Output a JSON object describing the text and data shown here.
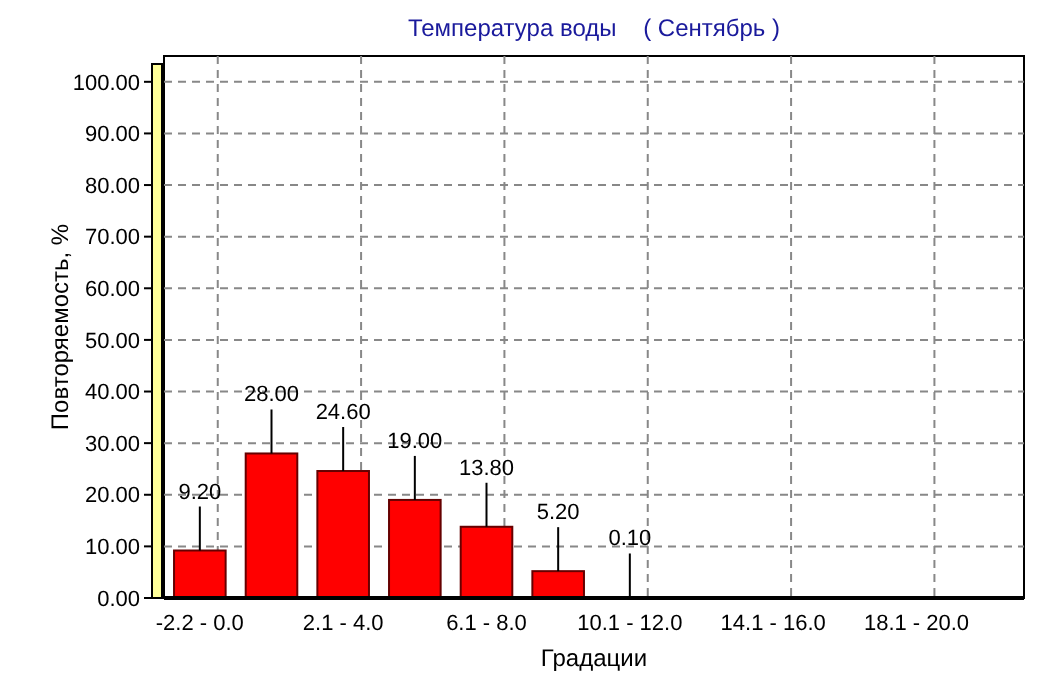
{
  "chart_data": {
    "type": "bar",
    "title": "Температура воды    ( Сентябрь )",
    "xlabel": "Градации",
    "ylabel": "Повторяемость, %",
    "categories": [
      "-2.2 - 0.0",
      null,
      "2.1 - 4.0",
      null,
      "6.1 - 8.0",
      null,
      "10.1 - 12.0",
      null,
      "14.1 - 16.0",
      null,
      "18.1 - 20.0",
      null
    ],
    "values": [
      9.2,
      28,
      24.6,
      19,
      13.8,
      5.2,
      0.1,
      null,
      null,
      null,
      null,
      null
    ],
    "value_labels": [
      "9.20",
      "28.00",
      "24.60",
      "19.00",
      "13.80",
      "5.20",
      "0.10",
      null,
      null,
      null,
      null,
      null
    ],
    "color": "#ff0000",
    "ylim": [
      0,
      105
    ],
    "yticks": [
      {
        "value": 0,
        "label": "0.00"
      },
      {
        "value": 10,
        "label": "10.00"
      },
      {
        "value": 20,
        "label": "20.00"
      },
      {
        "value": 30,
        "label": "30.00"
      },
      {
        "value": 40,
        "label": "40.00"
      },
      {
        "value": 50,
        "label": "50.00"
      },
      {
        "value": 60,
        "label": "60.00"
      },
      {
        "value": 70,
        "label": "70.00"
      },
      {
        "value": 80,
        "label": "80.00"
      },
      {
        "value": 90,
        "label": "90.00"
      },
      {
        "value": 100,
        "label": "100.00"
      }
    ],
    "grid": true
  }
}
